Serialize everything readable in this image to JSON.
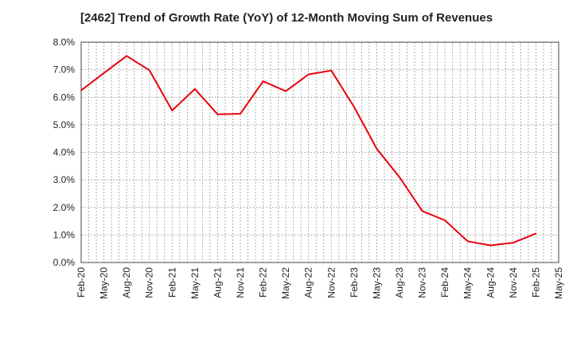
{
  "chart_data": {
    "type": "line",
    "title": "[2462]  Trend of Growth Rate (YoY) of 12-Month Moving Sum of Revenues",
    "xlabel": "",
    "ylabel": "",
    "x_tick_labels": [
      "Feb-20",
      "May-20",
      "Aug-20",
      "Nov-20",
      "Feb-21",
      "May-21",
      "Aug-21",
      "Nov-21",
      "Feb-22",
      "May-22",
      "Aug-22",
      "Nov-22",
      "Feb-23",
      "May-23",
      "Aug-23",
      "Nov-23",
      "Feb-24",
      "May-24",
      "Aug-24",
      "Nov-24",
      "Feb-25",
      "May-25"
    ],
    "y_tick_labels": [
      "0.0%",
      "1.0%",
      "2.0%",
      "3.0%",
      "4.0%",
      "5.0%",
      "6.0%",
      "7.0%",
      "8.0%"
    ],
    "ylim": [
      0,
      8
    ],
    "grid": true,
    "series": [
      {
        "color": "#e8000b",
        "x": [
          "Feb-20",
          "May-20",
          "Aug-20",
          "Nov-20",
          "Feb-21",
          "May-21",
          "Aug-21",
          "Nov-21",
          "Feb-22",
          "May-22",
          "Aug-22",
          "Nov-22",
          "Feb-23",
          "May-23",
          "Aug-23",
          "Nov-23",
          "Feb-24",
          "May-24",
          "Aug-24",
          "Nov-24",
          "Feb-25"
        ],
        "values": [
          6.25,
          6.88,
          7.5,
          6.98,
          5.52,
          6.3,
          5.38,
          5.4,
          6.58,
          6.22,
          6.83,
          6.97,
          5.65,
          4.13,
          3.1,
          1.87,
          1.53,
          0.77,
          0.62,
          0.72,
          1.05
        ]
      }
    ]
  }
}
